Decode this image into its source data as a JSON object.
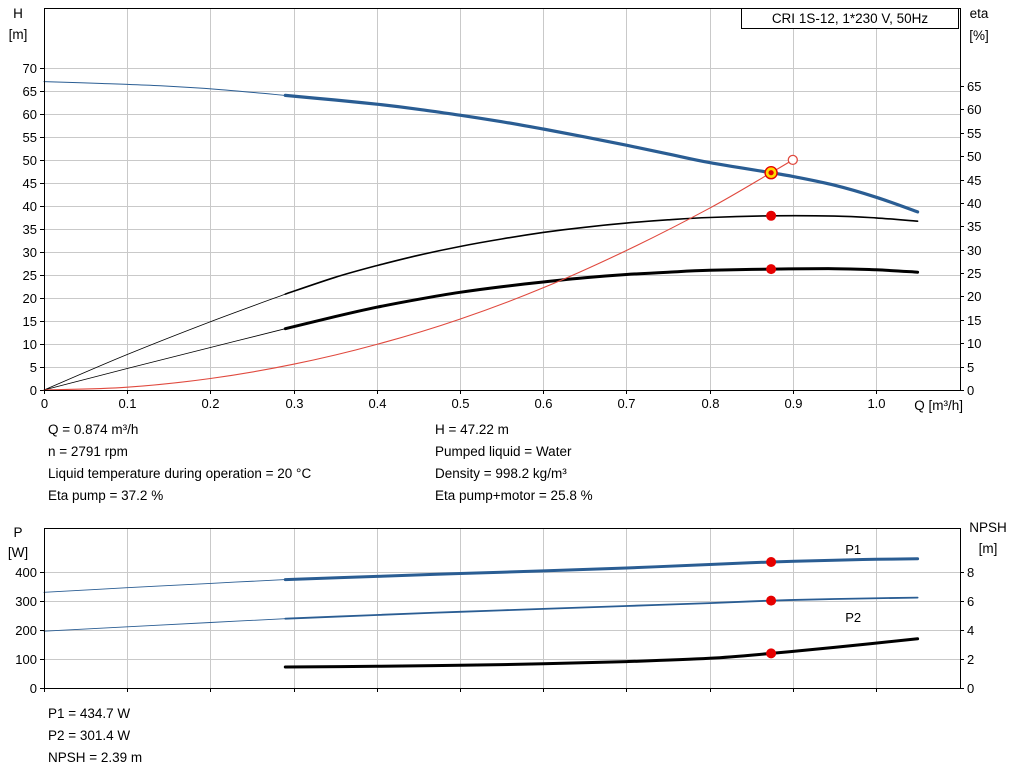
{
  "colors": {
    "blue": "#2a5d93",
    "black": "#000000",
    "red": "#e0493e",
    "dot_red": "#e60000",
    "dot_yellow": "#ffd900",
    "grid": "#c9c9c9",
    "frame": "#000000"
  },
  "info_top": {
    "left": [
      "Q = 0.874 m³/h",
      "n = 2791 rpm",
      "Liquid temperature during operation = 20 °C",
      "Eta pump = 37.2 %"
    ],
    "right": [
      "H = 47.22 m",
      "Pumped liquid = Water",
      "Density = 998.2 kg/m³",
      "Eta pump+motor = 25.8 %"
    ]
  },
  "info_bottom": [
    "P1 = 434.7 W",
    "P2 = 301.4 W",
    "NPSH = 2.39 m"
  ],
  "chart_data": [
    {
      "type": "line",
      "title": "CRI 1S-12, 1*230 V, 50Hz",
      "grid": true,
      "x_axis": {
        "label": "Q [m³/h]",
        "min": 0,
        "max": 1.101,
        "tick_values": [
          0,
          0.1,
          0.2,
          0.3,
          0.4,
          0.5,
          0.6,
          0.7,
          0.8,
          0.9,
          1.0
        ],
        "tick_labels": [
          "0",
          "0.1",
          "0.2",
          "0.3",
          "0.4",
          "0.5",
          "0.6",
          "0.7",
          "0.8",
          "0.9",
          "1.0"
        ]
      },
      "y_left": {
        "label_lines": [
          "H",
          "[m]"
        ],
        "min": 0,
        "max": 83,
        "tick_values": [
          0,
          5,
          10,
          15,
          20,
          25,
          30,
          35,
          40,
          45,
          50,
          55,
          60,
          65,
          70
        ],
        "tick_labels": [
          "0",
          "5",
          "10",
          "15",
          "20",
          "25",
          "30",
          "35",
          "40",
          "45",
          "50",
          "55",
          "60",
          "65",
          "70"
        ]
      },
      "y_right": {
        "label_lines": [
          "eta",
          "[%]"
        ],
        "min": 0,
        "max": 81.7,
        "tick_values": [
          0,
          5,
          10,
          15,
          20,
          25,
          30,
          35,
          40,
          45,
          50,
          55,
          60,
          65
        ],
        "tick_labels": [
          "0",
          "5",
          "10",
          "15",
          "20",
          "25",
          "30",
          "35",
          "40",
          "45",
          "50",
          "55",
          "60",
          "65"
        ]
      },
      "series": [
        {
          "name": "h-curve-lead",
          "axis": "left",
          "color": "blue",
          "width": 1,
          "points": [
            [
              0,
              67
            ],
            [
              0.07,
              66.6
            ],
            [
              0.14,
              66.1
            ],
            [
              0.21,
              65.3
            ],
            [
              0.29,
              64
            ]
          ]
        },
        {
          "name": "h-curve",
          "axis": "left",
          "color": "blue",
          "width": 3.2,
          "points": [
            [
              0.29,
              64
            ],
            [
              0.35,
              63
            ],
            [
              0.4,
              62.1
            ],
            [
              0.45,
              61
            ],
            [
              0.5,
              59.7
            ],
            [
              0.55,
              58.3
            ],
            [
              0.6,
              56.7
            ],
            [
              0.65,
              55
            ],
            [
              0.7,
              53.2
            ],
            [
              0.75,
              51.3
            ],
            [
              0.8,
              49.4
            ],
            [
              0.874,
              47.22
            ],
            [
              0.9,
              46.4
            ],
            [
              0.95,
              44.5
            ],
            [
              1.0,
              41.9
            ],
            [
              1.05,
              38.7
            ]
          ]
        },
        {
          "name": "eta-pump-lead",
          "axis": "right",
          "color": "black",
          "width": 0.8,
          "points": [
            [
              0,
              0
            ],
            [
              0.1,
              7.6
            ],
            [
              0.2,
              14.6
            ],
            [
              0.29,
              20.5
            ]
          ]
        },
        {
          "name": "eta-pump",
          "axis": "right",
          "color": "black",
          "width": 1.6,
          "points": [
            [
              0.29,
              20.5
            ],
            [
              0.35,
              24.1
            ],
            [
              0.4,
              26.6
            ],
            [
              0.45,
              28.8
            ],
            [
              0.5,
              30.7
            ],
            [
              0.55,
              32.3
            ],
            [
              0.6,
              33.7
            ],
            [
              0.65,
              34.8
            ],
            [
              0.7,
              35.7
            ],
            [
              0.75,
              36.4
            ],
            [
              0.8,
              36.9
            ],
            [
              0.874,
              37.25
            ],
            [
              0.95,
              37.2
            ],
            [
              1.0,
              36.8
            ],
            [
              1.05,
              36.1
            ]
          ]
        },
        {
          "name": "eta-pump-motor-lead",
          "axis": "right",
          "color": "black",
          "width": 0.8,
          "points": [
            [
              0,
              0
            ],
            [
              0.1,
              4.6
            ],
            [
              0.2,
              9.1
            ],
            [
              0.29,
              13.1
            ]
          ]
        },
        {
          "name": "eta-pump-motor",
          "axis": "right",
          "color": "black",
          "width": 3,
          "points": [
            [
              0.29,
              13.1
            ],
            [
              0.35,
              15.7
            ],
            [
              0.4,
              17.7
            ],
            [
              0.45,
              19.4
            ],
            [
              0.5,
              20.9
            ],
            [
              0.55,
              22.1
            ],
            [
              0.6,
              23.1
            ],
            [
              0.65,
              24
            ],
            [
              0.7,
              24.7
            ],
            [
              0.75,
              25.2
            ],
            [
              0.8,
              25.6
            ],
            [
              0.874,
              25.85
            ],
            [
              0.95,
              25.95
            ],
            [
              1.0,
              25.7
            ],
            [
              1.05,
              25.2
            ]
          ]
        },
        {
          "name": "system-curve",
          "axis": "left",
          "color": "red",
          "width": 1.1,
          "points": [
            [
              0,
              0
            ],
            [
              0.1,
              0.6
            ],
            [
              0.2,
              2.5
            ],
            [
              0.3,
              5.6
            ],
            [
              0.4,
              9.9
            ],
            [
              0.5,
              15.4
            ],
            [
              0.6,
              22.2
            ],
            [
              0.7,
              30.3
            ],
            [
              0.8,
              39.5
            ],
            [
              0.874,
              47.22
            ],
            [
              0.9,
              50
            ]
          ]
        }
      ],
      "labels": [],
      "markers": [
        {
          "name": "system-curve-end-circle",
          "style": "open",
          "x": 0.9,
          "value": 50,
          "axis": "left"
        },
        {
          "name": "duty-point-h",
          "style": "duty",
          "x": 0.874,
          "value": 47.22,
          "axis": "left"
        },
        {
          "name": "duty-point-eta-pump",
          "style": "dot",
          "x": 0.874,
          "value": 37.25,
          "axis": "right"
        },
        {
          "name": "duty-point-eta-pump-motor",
          "style": "dot",
          "x": 0.874,
          "value": 25.85,
          "axis": "right"
        }
      ]
    },
    {
      "type": "line",
      "title": "",
      "grid": true,
      "x_axis": {
        "label": "",
        "min": 0,
        "max": 1.101,
        "tick_values": [
          0,
          0.1,
          0.2,
          0.3,
          0.4,
          0.5,
          0.6,
          0.7,
          0.8,
          0.9,
          1.0
        ],
        "tick_labels": []
      },
      "y_left": {
        "label_lines": [
          "P",
          "[W]"
        ],
        "min": 0,
        "max": 552,
        "tick_values": [
          0,
          100,
          200,
          300,
          400
        ],
        "tick_labels": [
          "0",
          "100",
          "200",
          "300",
          "400"
        ]
      },
      "y_right": {
        "label_lines": [
          "NPSH",
          "[m]"
        ],
        "min": 0,
        "max": 11.04,
        "tick_values": [
          0,
          2,
          4,
          6,
          8
        ],
        "tick_labels": [
          "0",
          "2",
          "4",
          "6",
          "8"
        ]
      },
      "series": [
        {
          "name": "p1-lead",
          "axis": "left",
          "color": "blue",
          "width": 0.9,
          "points": [
            [
              0,
              330
            ],
            [
              0.1,
              346
            ],
            [
              0.2,
              361
            ],
            [
              0.29,
              374
            ]
          ]
        },
        {
          "name": "p1",
          "axis": "left",
          "color": "blue",
          "width": 3,
          "points": [
            [
              0.29,
              374
            ],
            [
              0.4,
              385
            ],
            [
              0.5,
              395
            ],
            [
              0.6,
              404
            ],
            [
              0.7,
              414
            ],
            [
              0.8,
              426
            ],
            [
              0.874,
              434.7
            ],
            [
              0.95,
              441
            ],
            [
              1.0,
              444
            ],
            [
              1.05,
              446
            ]
          ]
        },
        {
          "name": "p2-lead",
          "axis": "left",
          "color": "blue",
          "width": 0.9,
          "points": [
            [
              0,
              196
            ],
            [
              0.1,
              211
            ],
            [
              0.2,
              226
            ],
            [
              0.29,
              239
            ]
          ]
        },
        {
          "name": "p2",
          "axis": "left",
          "color": "blue",
          "width": 1.8,
          "points": [
            [
              0.29,
              239
            ],
            [
              0.4,
              252
            ],
            [
              0.5,
              263
            ],
            [
              0.6,
              273
            ],
            [
              0.7,
              283
            ],
            [
              0.8,
              293
            ],
            [
              0.874,
              301.4
            ],
            [
              0.95,
              307
            ],
            [
              1.05,
              312
            ]
          ]
        },
        {
          "name": "npsh",
          "axis": "right",
          "color": "black",
          "width": 3,
          "points": [
            [
              0.29,
              1.45
            ],
            [
              0.4,
              1.5
            ],
            [
              0.5,
              1.57
            ],
            [
              0.6,
              1.67
            ],
            [
              0.7,
              1.82
            ],
            [
              0.8,
              2.05
            ],
            [
              0.874,
              2.39
            ],
            [
              0.95,
              2.8
            ],
            [
              1.05,
              3.4
            ]
          ]
        }
      ],
      "labels": [
        {
          "text": "P1",
          "x": 0.963,
          "value": 462,
          "axis": "left",
          "color": "blue"
        },
        {
          "text": "P2",
          "x": 0.963,
          "value": 228,
          "axis": "left",
          "color": "blue"
        }
      ],
      "markers": [
        {
          "name": "duty-point-p1",
          "style": "dot",
          "x": 0.874,
          "value": 434.7,
          "axis": "left"
        },
        {
          "name": "duty-point-p2",
          "style": "dot",
          "x": 0.874,
          "value": 301.4,
          "axis": "left"
        },
        {
          "name": "duty-point-npsh",
          "style": "dot",
          "x": 0.874,
          "value": 2.39,
          "axis": "right"
        }
      ]
    }
  ]
}
